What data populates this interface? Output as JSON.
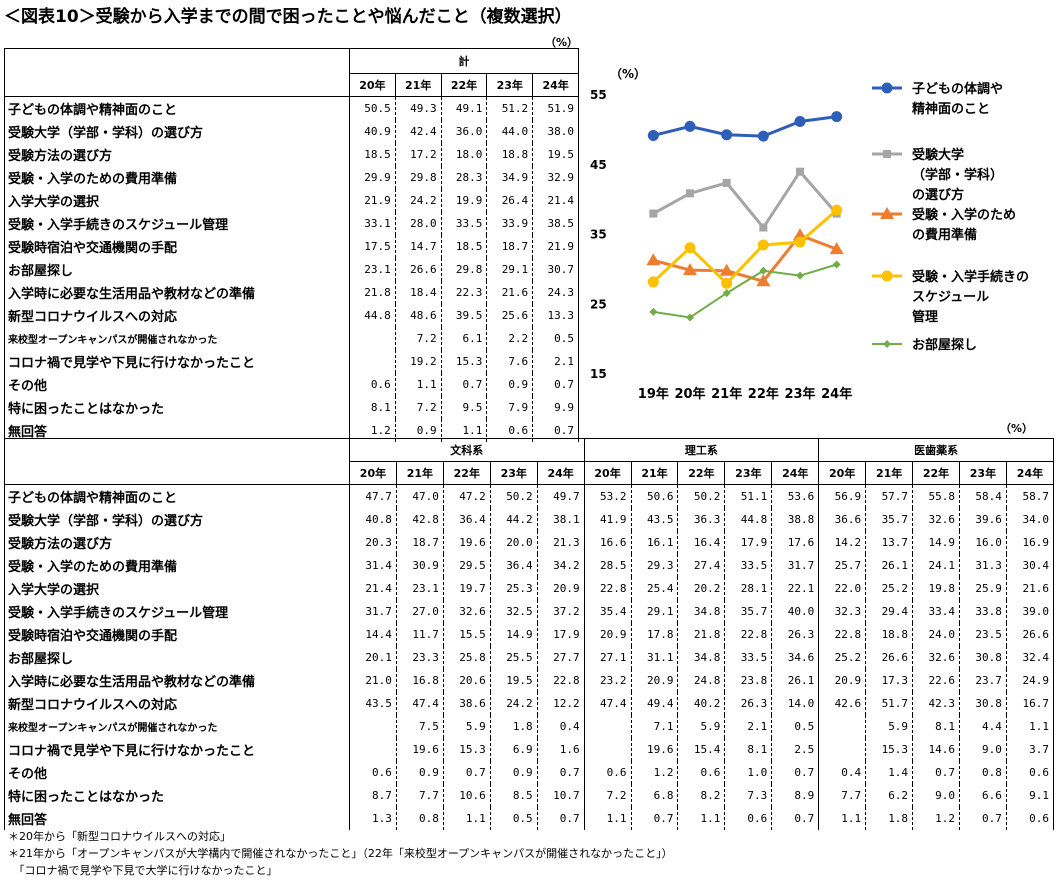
{
  "title": "＜図表10＞受験から入学までの間で困ったことや悩んだこと（複数選択）",
  "unit_label": "（%）",
  "top_table": {
    "group_label": "計",
    "years": [
      "20年",
      "21年",
      "22年",
      "23年",
      "24年"
    ],
    "rows": [
      {
        "label": "子どもの体調や精神面のこと",
        "v": [
          "50.5",
          "49.3",
          "49.1",
          "51.2",
          "51.9"
        ]
      },
      {
        "label": "受験大学（学部・学科）の選び方",
        "v": [
          "40.9",
          "42.4",
          "36.0",
          "44.0",
          "38.0"
        ]
      },
      {
        "label": "受験方法の選び方",
        "v": [
          "18.5",
          "17.2",
          "18.0",
          "18.8",
          "19.5"
        ]
      },
      {
        "label": "受験・入学のための費用準備",
        "v": [
          "29.9",
          "29.8",
          "28.3",
          "34.9",
          "32.9"
        ]
      },
      {
        "label": "入学大学の選択",
        "v": [
          "21.9",
          "24.2",
          "19.9",
          "26.4",
          "21.4"
        ]
      },
      {
        "label": "受験・入学手続きのスケジュール管理",
        "v": [
          "33.1",
          "28.0",
          "33.5",
          "33.9",
          "38.5"
        ]
      },
      {
        "label": "受験時宿泊や交通機関の手配",
        "v": [
          "17.5",
          "14.7",
          "18.5",
          "18.7",
          "21.9"
        ]
      },
      {
        "label": "お部屋探し",
        "v": [
          "23.1",
          "26.6",
          "29.8",
          "29.1",
          "30.7"
        ]
      },
      {
        "label": "入学時に必要な生活用品や教材などの準備",
        "v": [
          "21.8",
          "18.4",
          "22.3",
          "21.6",
          "24.3"
        ]
      },
      {
        "label": "新型コロナウイルスへの対応",
        "v": [
          "44.8",
          "48.6",
          "39.5",
          "25.6",
          "13.3"
        ]
      },
      {
        "label": "来校型オープンキャンパスが開催されなかった",
        "small": true,
        "v": [
          "",
          "7.2",
          "6.1",
          "2.2",
          "0.5"
        ]
      },
      {
        "label": "コロナ禍で見学や下見に行けなかったこと",
        "v": [
          "",
          "19.2",
          "15.3",
          "7.6",
          "2.1"
        ]
      },
      {
        "label": "その他",
        "v": [
          "0.6",
          "1.1",
          "0.7",
          "0.9",
          "0.7"
        ]
      },
      {
        "label": "特に困ったことはなかった",
        "v": [
          "8.1",
          "7.2",
          "9.5",
          "7.9",
          "9.9"
        ]
      },
      {
        "label": "無回答",
        "v": [
          "1.2",
          "0.9",
          "1.1",
          "0.6",
          "0.7"
        ]
      }
    ]
  },
  "bottom_table": {
    "groups": [
      "文科系",
      "理工系",
      "医歯薬系"
    ],
    "years": [
      "20年",
      "21年",
      "22年",
      "23年",
      "24年"
    ],
    "rows": [
      {
        "label": "子どもの体調や精神面のこと",
        "v": [
          "47.7",
          "47.0",
          "47.2",
          "50.2",
          "49.7",
          "53.2",
          "50.6",
          "50.2",
          "51.1",
          "53.6",
          "56.9",
          "57.7",
          "55.8",
          "58.4",
          "58.7"
        ]
      },
      {
        "label": "受験大学（学部・学科）の選び方",
        "v": [
          "40.8",
          "42.8",
          "36.4",
          "44.2",
          "38.1",
          "41.9",
          "43.5",
          "36.3",
          "44.8",
          "38.8",
          "36.6",
          "35.7",
          "32.6",
          "39.6",
          "34.0"
        ]
      },
      {
        "label": "受験方法の選び方",
        "v": [
          "20.3",
          "18.7",
          "19.6",
          "20.0",
          "21.3",
          "16.6",
          "16.1",
          "16.4",
          "17.9",
          "17.6",
          "14.2",
          "13.7",
          "14.9",
          "16.0",
          "16.9"
        ]
      },
      {
        "label": "受験・入学のための費用準備",
        "v": [
          "31.4",
          "30.9",
          "29.5",
          "36.4",
          "34.2",
          "28.5",
          "29.3",
          "27.4",
          "33.5",
          "31.7",
          "25.7",
          "26.1",
          "24.1",
          "31.3",
          "30.4"
        ]
      },
      {
        "label": "入学大学の選択",
        "v": [
          "21.4",
          "23.1",
          "19.7",
          "25.3",
          "20.9",
          "22.8",
          "25.4",
          "20.2",
          "28.1",
          "22.1",
          "22.0",
          "25.2",
          "19.8",
          "25.9",
          "21.6"
        ]
      },
      {
        "label": "受験・入学手続きのスケジュール管理",
        "v": [
          "31.7",
          "27.0",
          "32.6",
          "32.5",
          "37.2",
          "35.4",
          "29.1",
          "34.8",
          "35.7",
          "40.0",
          "32.3",
          "29.4",
          "33.4",
          "33.8",
          "39.0"
        ]
      },
      {
        "label": "受験時宿泊や交通機関の手配",
        "v": [
          "14.4",
          "11.7",
          "15.5",
          "14.9",
          "17.9",
          "20.9",
          "17.8",
          "21.8",
          "22.8",
          "26.3",
          "22.8",
          "18.8",
          "24.0",
          "23.5",
          "26.6"
        ]
      },
      {
        "label": "お部屋探し",
        "v": [
          "20.1",
          "23.3",
          "25.8",
          "25.5",
          "27.7",
          "27.1",
          "31.1",
          "34.8",
          "33.5",
          "34.6",
          "25.2",
          "26.6",
          "32.6",
          "30.8",
          "32.4"
        ]
      },
      {
        "label": "入学時に必要な生活用品や教材などの準備",
        "v": [
          "21.0",
          "16.8",
          "20.6",
          "19.5",
          "22.8",
          "23.2",
          "20.9",
          "24.8",
          "23.8",
          "26.1",
          "20.9",
          "17.3",
          "22.6",
          "23.7",
          "24.9"
        ]
      },
      {
        "label": "新型コロナウイルスへの対応",
        "v": [
          "43.5",
          "47.4",
          "38.6",
          "24.2",
          "12.2",
          "47.4",
          "49.4",
          "40.2",
          "26.3",
          "14.0",
          "42.6",
          "51.7",
          "42.3",
          "30.8",
          "16.7"
        ]
      },
      {
        "label": "来校型オープンキャンパスが開催されなかった",
        "small": true,
        "v": [
          "",
          "7.5",
          "5.9",
          "1.8",
          "0.4",
          "",
          "7.1",
          "5.9",
          "2.1",
          "0.5",
          "",
          "5.9",
          "8.1",
          "4.4",
          "1.1"
        ]
      },
      {
        "label": "コロナ禍で見学や下見に行けなかったこと",
        "v": [
          "",
          "19.6",
          "15.3",
          "6.9",
          "1.6",
          "",
          "19.6",
          "15.4",
          "8.1",
          "2.5",
          "",
          "15.3",
          "14.6",
          "9.0",
          "3.7"
        ]
      },
      {
        "label": "その他",
        "v": [
          "0.6",
          "0.9",
          "0.7",
          "0.9",
          "0.7",
          "0.6",
          "1.2",
          "0.6",
          "1.0",
          "0.7",
          "0.4",
          "1.4",
          "0.7",
          "0.8",
          "0.6"
        ]
      },
      {
        "label": "特に困ったことはなかった",
        "v": [
          "8.7",
          "7.7",
          "10.6",
          "8.5",
          "10.7",
          "7.2",
          "6.8",
          "8.2",
          "7.3",
          "8.9",
          "7.7",
          "6.2",
          "9.0",
          "6.6",
          "9.1"
        ]
      },
      {
        "label": "無回答",
        "v": [
          "1.3",
          "0.8",
          "1.1",
          "0.5",
          "0.7",
          "1.1",
          "0.7",
          "1.1",
          "0.6",
          "0.7",
          "1.1",
          "1.8",
          "1.2",
          "0.7",
          "0.6"
        ]
      }
    ]
  },
  "chart_data": {
    "type": "line",
    "ylabel": "（%）",
    "x": [
      "19年",
      "20年",
      "21年",
      "22年",
      "23年",
      "24年"
    ],
    "ylim": [
      15,
      55
    ],
    "yticks": [
      15,
      25,
      35,
      45,
      55
    ],
    "legend_position": "right",
    "series": [
      {
        "name": "子どもの体調や精神面のこと",
        "legend_lines": [
          "子どもの体調や",
          "精神面のこと"
        ],
        "color": "#2E5FB8",
        "marker": "circle",
        "values": [
          49.2,
          50.5,
          49.3,
          49.1,
          51.2,
          51.9
        ]
      },
      {
        "name": "受験大学（学部・学科）の選び方",
        "legend_lines": [
          "受験大学",
          "（学部・学科）",
          "の選び方"
        ],
        "color": "#A5A5A5",
        "marker": "square",
        "values": [
          38.0,
          40.9,
          42.4,
          36.0,
          44.0,
          38.0
        ]
      },
      {
        "name": "受験・入学のための費用準備",
        "legend_lines": [
          "受験・入学のため",
          "の費用準備"
        ],
        "color": "#ED7D31",
        "marker": "triangle",
        "values": [
          31.3,
          29.9,
          29.8,
          28.3,
          34.9,
          32.9
        ]
      },
      {
        "name": "受験・入学手続きのスケジュール管理",
        "legend_lines": [
          "受験・入学手続きの",
          "スケジュール",
          "管理"
        ],
        "color": "#FFC000",
        "marker": "circle",
        "values": [
          28.2,
          33.1,
          28.0,
          33.5,
          33.9,
          38.5
        ]
      },
      {
        "name": "お部屋探し",
        "legend_lines": [
          "お部屋探し"
        ],
        "color": "#70AD47",
        "marker": "diamond",
        "values": [
          23.9,
          23.1,
          26.6,
          29.8,
          29.1,
          30.7
        ]
      }
    ]
  },
  "notes": [
    "＊20年から「新型コロナウイルスへの対応」",
    "＊21年から「オープンキャンパスが大学構内で開催されなかったこと」（22年「来校型オープンキャンパスが開催されなかったこと」）",
    "　「コロナ禍で見学や下見で大学に行けなかったこと」"
  ]
}
